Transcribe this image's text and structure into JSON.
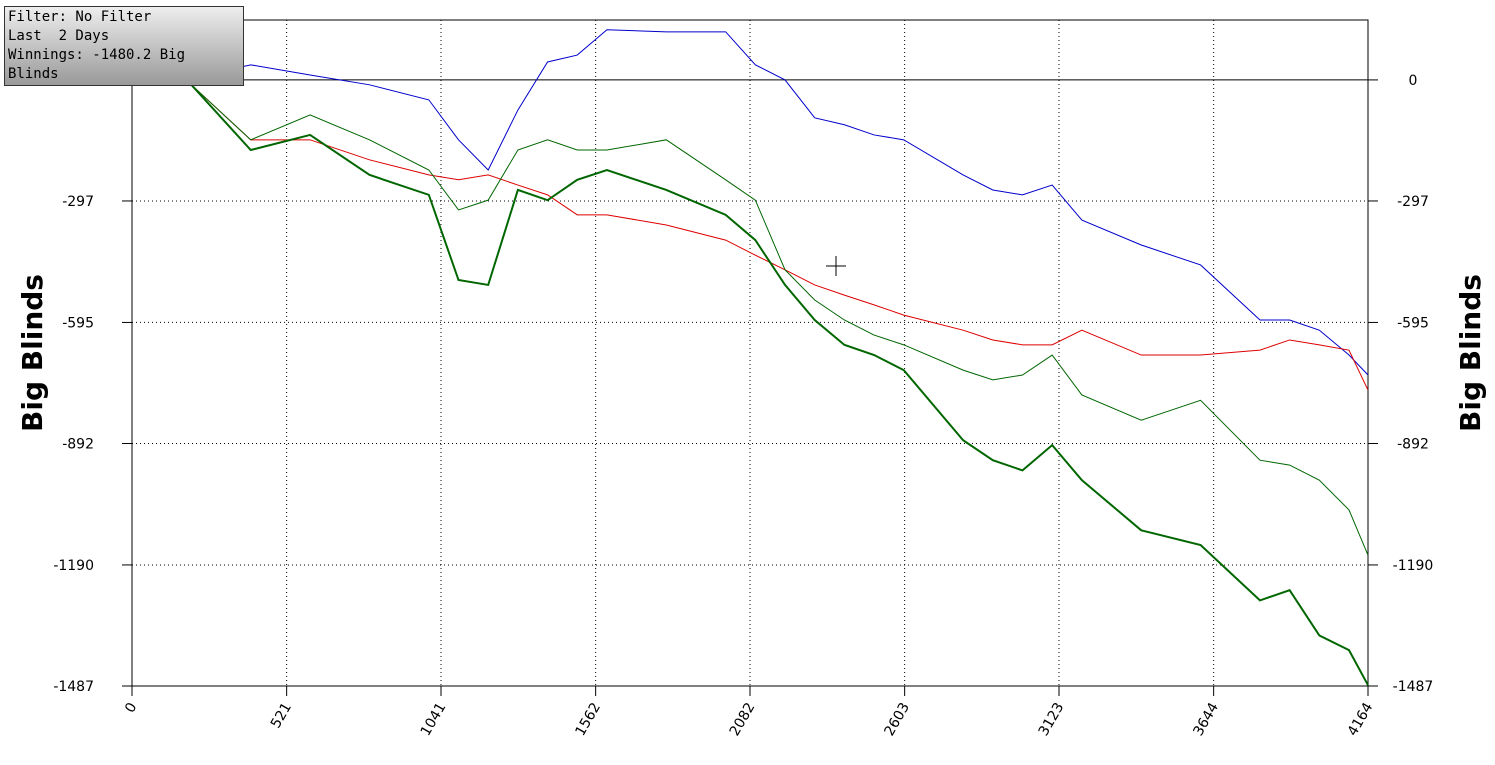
{
  "info": {
    "lines": [
      "Filter: No Filter",
      "Last  2 Days",
      "Winnings: -1480.2 Big Blinds"
    ]
  },
  "chart_data": {
    "type": "line",
    "y_label": "Big Blinds",
    "y2_label": "Big Blinds",
    "x": [
      0,
      200,
      400,
      600,
      800,
      1000,
      1100,
      1200,
      1300,
      1400,
      1500,
      1600,
      1800,
      2000,
      2100,
      2200,
      2300,
      2400,
      2500,
      2600,
      2800,
      2900,
      3000,
      3100,
      3200,
      3400,
      3600,
      3800,
      3900,
      4000,
      4100,
      4164
    ],
    "series": [
      {
        "color": "#0000cc",
        "width": 1,
        "values": [
          0,
          5,
          37,
          12,
          -12,
          -49,
          -147,
          -221,
          -74,
          44,
          61,
          123,
          118,
          118,
          37,
          0,
          -93,
          -110,
          -135,
          -147,
          -233,
          -270,
          -282,
          -258,
          -344,
          -405,
          -454,
          -589,
          -589,
          -614,
          -675,
          -724
        ]
      },
      {
        "color": "#dd0000",
        "width": 1,
        "values": [
          0,
          -12,
          -147,
          -147,
          -196,
          -233,
          -245,
          -233,
          -258,
          -282,
          -331,
          -331,
          -356,
          -393,
          -430,
          -466,
          -503,
          -528,
          -552,
          -577,
          -614,
          -638,
          -650,
          -650,
          -614,
          -675,
          -675,
          -663,
          -638,
          -650,
          -663,
          -761
        ]
      },
      {
        "color": "#006600",
        "width": 1,
        "values": [
          0,
          -12,
          -147,
          -86,
          -147,
          -221,
          -319,
          -295,
          -172,
          -147,
          -172,
          -172,
          -147,
          -245,
          -295,
          -466,
          -540,
          -589,
          -626,
          -650,
          -712,
          -736,
          -724,
          -675,
          -773,
          -835,
          -786,
          -933,
          -945,
          -982,
          -1055,
          -1166
        ]
      },
      {
        "color": "#006600",
        "width": 2,
        "values": [
          0,
          -12,
          -172,
          -135,
          -233,
          -282,
          -491,
          -503,
          -270,
          -295,
          -245,
          -221,
          -270,
          -331,
          -393,
          -503,
          -589,
          -650,
          -675,
          -712,
          -884,
          -933,
          -958,
          -896,
          -982,
          -1105,
          -1141,
          -1277,
          -1252,
          -1363,
          -1399,
          -1485
        ]
      }
    ],
    "xlim": [
      0,
      4164
    ],
    "xticks": [
      0,
      521,
      1041,
      1562,
      2082,
      2603,
      3123,
      3644,
      4164
    ],
    "ylim": [
      -1487,
      147
    ],
    "yticks": [
      -1487,
      -1190,
      -892,
      -595,
      -297,
      0
    ],
    "grid": true
  }
}
